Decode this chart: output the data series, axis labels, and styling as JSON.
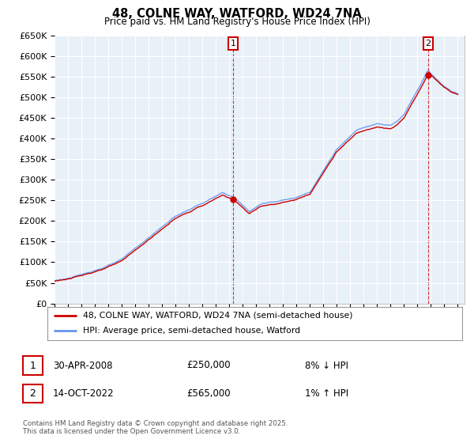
{
  "title": "48, COLNE WAY, WATFORD, WD24 7NA",
  "subtitle": "Price paid vs. HM Land Registry's House Price Index (HPI)",
  "legend_line1": "48, COLNE WAY, WATFORD, WD24 7NA (semi-detached house)",
  "legend_line2": "HPI: Average price, semi-detached house, Watford",
  "annotation1_date": "30-APR-2008",
  "annotation1_price": "£250,000",
  "annotation1_hpi": "8% ↓ HPI",
  "annotation2_date": "14-OCT-2022",
  "annotation2_price": "£565,000",
  "annotation2_hpi": "1% ↑ HPI",
  "footer": "Contains HM Land Registry data © Crown copyright and database right 2025.\nThis data is licensed under the Open Government Licence v3.0.",
  "hpi_color": "#6495ED",
  "price_color": "#CC0000",
  "annotation_color": "#CC0000",
  "background_color": "#FFFFFF",
  "chart_bg_color": "#E8F0F8",
  "grid_color": "#FFFFFF",
  "ylim": [
    0,
    650000
  ],
  "yticks": [
    0,
    50000,
    100000,
    150000,
    200000,
    250000,
    300000,
    350000,
    400000,
    450000,
    500000,
    550000,
    600000,
    650000
  ],
  "year_start": 1995,
  "year_end": 2025,
  "sale1_year": 2008.29,
  "sale1_price": 250000,
  "sale2_year": 2022.79,
  "sale2_price": 565000
}
